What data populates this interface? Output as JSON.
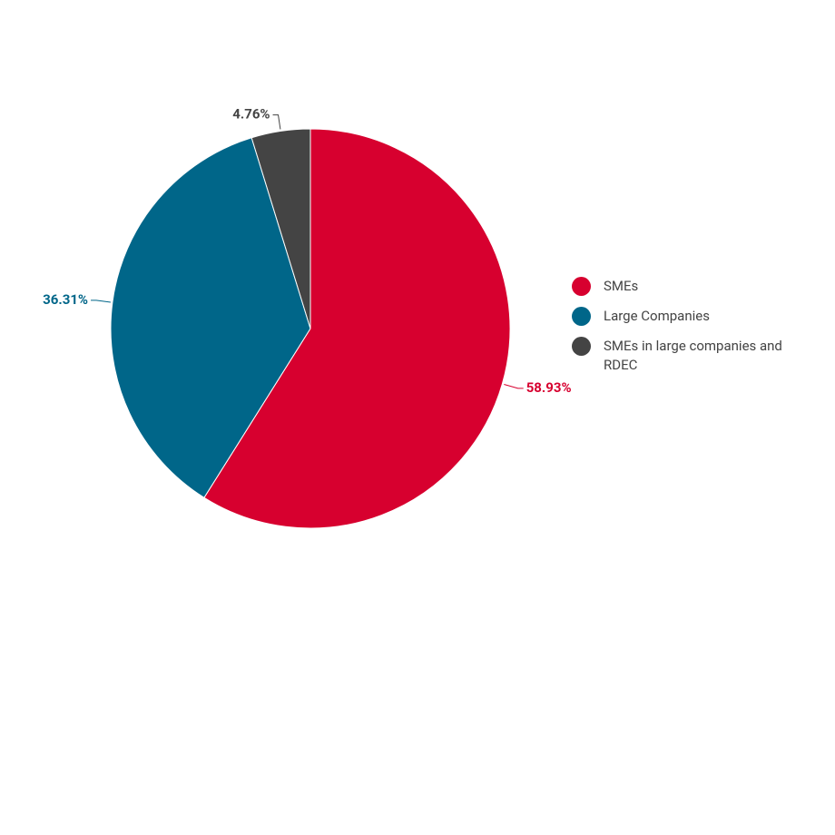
{
  "chart_data": {
    "type": "pie",
    "categories": [
      "SMEs",
      "Large Companies",
      "SMEs in large companies and RDEC"
    ],
    "values": [
      58.93,
      36.31,
      4.76
    ],
    "value_labels": [
      "58.93%",
      "36.31%",
      "4.76%"
    ],
    "colors": [
      "#d7002f",
      "#006689",
      "#444444"
    ],
    "legend": "right"
  }
}
